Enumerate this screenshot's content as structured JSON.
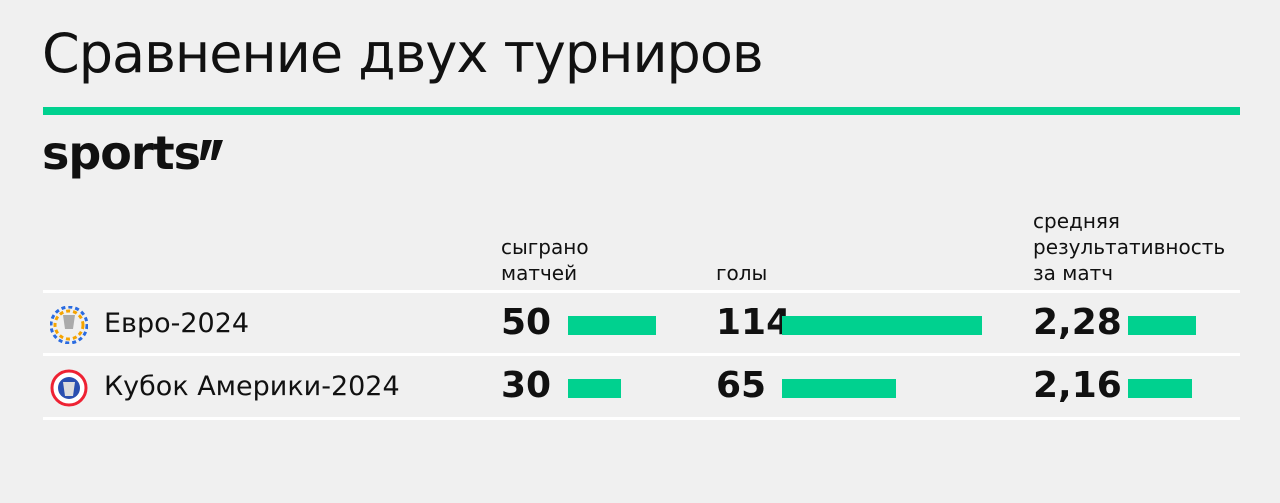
{
  "header": {
    "title": "Сравнение двух турниров",
    "brand": "sports"
  },
  "table": {
    "columns": [
      [
        "сыграно",
        "матчей"
      ],
      [
        "голы"
      ],
      [
        "средняя",
        "результативность",
        "за матч"
      ]
    ],
    "rows": [
      {
        "name": "Евро-2024",
        "cells": [
          50,
          114,
          {
            "value": 2.28,
            "label": "2,28"
          }
        ]
      },
      {
        "name": "Кубок Америки-2024",
        "cells": [
          30,
          65,
          {
            "value": 2.16,
            "label": "2,16"
          }
        ]
      }
    ]
  }
}
